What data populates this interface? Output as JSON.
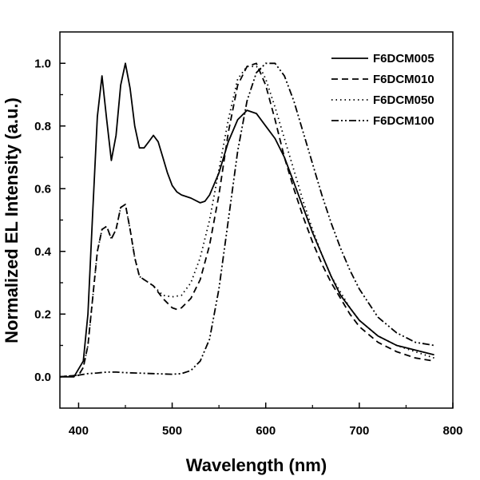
{
  "chart_data": {
    "type": "line",
    "xlabel": "Wavelength (nm)",
    "ylabel": "Normalized EL Intensity (a.u.)",
    "xlim": [
      380,
      800
    ],
    "ylim": [
      -0.1,
      1.1
    ],
    "xticks": [
      400,
      500,
      600,
      700,
      800
    ],
    "yticks": [
      0.0,
      0.2,
      0.4,
      0.6,
      0.8,
      1.0
    ],
    "xtick_labels": [
      "400",
      "500",
      "600",
      "700",
      "800"
    ],
    "ytick_labels": [
      "0.0",
      "0.2",
      "0.4",
      "0.6",
      "0.8",
      "1.0"
    ],
    "grid": false,
    "legend_position": "top-right",
    "series": [
      {
        "name": "F6DCM005",
        "dash": "solid",
        "points": [
          [
            380,
            0
          ],
          [
            395,
            0
          ],
          [
            405,
            0.05
          ],
          [
            410,
            0.2
          ],
          [
            415,
            0.52
          ],
          [
            420,
            0.83
          ],
          [
            425,
            0.96
          ],
          [
            430,
            0.82
          ],
          [
            435,
            0.69
          ],
          [
            440,
            0.77
          ],
          [
            445,
            0.93
          ],
          [
            450,
            1.0
          ],
          [
            455,
            0.92
          ],
          [
            460,
            0.8
          ],
          [
            465,
            0.73
          ],
          [
            470,
            0.73
          ],
          [
            475,
            0.75
          ],
          [
            480,
            0.77
          ],
          [
            485,
            0.75
          ],
          [
            490,
            0.7
          ],
          [
            495,
            0.65
          ],
          [
            500,
            0.61
          ],
          [
            505,
            0.59
          ],
          [
            510,
            0.58
          ],
          [
            520,
            0.57
          ],
          [
            530,
            0.555
          ],
          [
            535,
            0.56
          ],
          [
            540,
            0.58
          ],
          [
            550,
            0.65
          ],
          [
            560,
            0.75
          ],
          [
            570,
            0.82
          ],
          [
            580,
            0.85
          ],
          [
            590,
            0.84
          ],
          [
            600,
            0.8
          ],
          [
            610,
            0.76
          ],
          [
            620,
            0.7
          ],
          [
            630,
            0.62
          ],
          [
            640,
            0.54
          ],
          [
            650,
            0.46
          ],
          [
            660,
            0.39
          ],
          [
            670,
            0.32
          ],
          [
            680,
            0.26
          ],
          [
            690,
            0.22
          ],
          [
            700,
            0.18
          ],
          [
            720,
            0.13
          ],
          [
            740,
            0.1
          ],
          [
            760,
            0.085
          ],
          [
            780,
            0.07
          ]
        ]
      },
      {
        "name": "F6DCM010",
        "dash": "dashed",
        "points": [
          [
            380,
            0
          ],
          [
            400,
            0.005
          ],
          [
            405,
            0.03
          ],
          [
            410,
            0.1
          ],
          [
            415,
            0.25
          ],
          [
            420,
            0.4
          ],
          [
            425,
            0.47
          ],
          [
            430,
            0.48
          ],
          [
            435,
            0.44
          ],
          [
            440,
            0.47
          ],
          [
            445,
            0.54
          ],
          [
            450,
            0.55
          ],
          [
            455,
            0.47
          ],
          [
            460,
            0.38
          ],
          [
            465,
            0.32
          ],
          [
            470,
            0.31
          ],
          [
            480,
            0.29
          ],
          [
            490,
            0.25
          ],
          [
            500,
            0.22
          ],
          [
            505,
            0.215
          ],
          [
            510,
            0.22
          ],
          [
            520,
            0.25
          ],
          [
            530,
            0.31
          ],
          [
            540,
            0.42
          ],
          [
            550,
            0.58
          ],
          [
            560,
            0.78
          ],
          [
            570,
            0.93
          ],
          [
            580,
            0.99
          ],
          [
            590,
            1.0
          ],
          [
            600,
            0.93
          ],
          [
            610,
            0.82
          ],
          [
            620,
            0.7
          ],
          [
            630,
            0.6
          ],
          [
            640,
            0.51
          ],
          [
            650,
            0.43
          ],
          [
            660,
            0.36
          ],
          [
            670,
            0.3
          ],
          [
            680,
            0.25
          ],
          [
            690,
            0.2
          ],
          [
            700,
            0.16
          ],
          [
            720,
            0.11
          ],
          [
            740,
            0.08
          ],
          [
            760,
            0.06
          ],
          [
            780,
            0.05
          ]
        ]
      },
      {
        "name": "F6DCM050",
        "dash": "dotted",
        "points": [
          [
            380,
            0
          ],
          [
            400,
            0.005
          ],
          [
            405,
            0.03
          ],
          [
            410,
            0.1
          ],
          [
            415,
            0.25
          ],
          [
            420,
            0.4
          ],
          [
            425,
            0.47
          ],
          [
            430,
            0.48
          ],
          [
            435,
            0.44
          ],
          [
            440,
            0.47
          ],
          [
            445,
            0.54
          ],
          [
            450,
            0.55
          ],
          [
            455,
            0.47
          ],
          [
            460,
            0.38
          ],
          [
            465,
            0.32
          ],
          [
            470,
            0.31
          ],
          [
            480,
            0.29
          ],
          [
            490,
            0.26
          ],
          [
            500,
            0.255
          ],
          [
            510,
            0.26
          ],
          [
            520,
            0.3
          ],
          [
            530,
            0.38
          ],
          [
            540,
            0.5
          ],
          [
            550,
            0.66
          ],
          [
            560,
            0.82
          ],
          [
            570,
            0.95
          ],
          [
            580,
            0.99
          ],
          [
            590,
            0.99
          ],
          [
            595,
            0.98
          ],
          [
            600,
            0.95
          ],
          [
            610,
            0.86
          ],
          [
            620,
            0.76
          ],
          [
            630,
            0.66
          ],
          [
            640,
            0.56
          ],
          [
            650,
            0.47
          ],
          [
            660,
            0.39
          ],
          [
            670,
            0.32
          ],
          [
            680,
            0.27
          ],
          [
            690,
            0.22
          ],
          [
            700,
            0.18
          ],
          [
            720,
            0.13
          ],
          [
            740,
            0.1
          ],
          [
            760,
            0.08
          ],
          [
            780,
            0.06
          ]
        ]
      },
      {
        "name": "F6DCM100",
        "dash": "dashdotdot",
        "points": [
          [
            380,
            0
          ],
          [
            400,
            0.005
          ],
          [
            410,
            0.01
          ],
          [
            420,
            0.012
          ],
          [
            430,
            0.015
          ],
          [
            440,
            0.015
          ],
          [
            450,
            0.013
          ],
          [
            460,
            0.012
          ],
          [
            480,
            0.01
          ],
          [
            500,
            0.008
          ],
          [
            510,
            0.01
          ],
          [
            520,
            0.02
          ],
          [
            530,
            0.05
          ],
          [
            540,
            0.12
          ],
          [
            550,
            0.28
          ],
          [
            560,
            0.5
          ],
          [
            570,
            0.72
          ],
          [
            580,
            0.88
          ],
          [
            590,
            0.97
          ],
          [
            600,
            1.0
          ],
          [
            610,
            1.0
          ],
          [
            620,
            0.96
          ],
          [
            630,
            0.88
          ],
          [
            640,
            0.78
          ],
          [
            650,
            0.68
          ],
          [
            660,
            0.58
          ],
          [
            670,
            0.49
          ],
          [
            680,
            0.41
          ],
          [
            690,
            0.34
          ],
          [
            700,
            0.28
          ],
          [
            720,
            0.19
          ],
          [
            740,
            0.14
          ],
          [
            760,
            0.11
          ],
          [
            780,
            0.1
          ]
        ]
      }
    ]
  }
}
